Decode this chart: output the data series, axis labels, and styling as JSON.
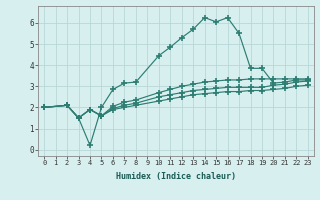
{
  "xlabel": "Humidex (Indice chaleur)",
  "xlim": [
    -0.5,
    23.5
  ],
  "ylim": [
    -0.3,
    6.8
  ],
  "xticks": [
    0,
    1,
    2,
    3,
    4,
    5,
    6,
    7,
    8,
    9,
    10,
    11,
    12,
    13,
    14,
    15,
    16,
    17,
    18,
    19,
    20,
    21,
    22,
    23
  ],
  "yticks": [
    0,
    1,
    2,
    3,
    4,
    5,
    6
  ],
  "background_color": "#d8efef",
  "grid_color": "#b8d8d8",
  "line_color": "#2d7d72",
  "lines": [
    {
      "x": [
        0,
        2,
        3,
        4,
        5,
        6,
        7,
        8,
        10,
        11,
        12,
        13,
        14,
        15,
        16,
        17,
        18,
        19,
        20,
        21,
        22,
        23
      ],
      "y": [
        2.0,
        2.1,
        1.5,
        0.2,
        2.0,
        2.85,
        3.15,
        3.2,
        4.45,
        4.85,
        5.3,
        5.7,
        6.25,
        6.05,
        6.25,
        5.5,
        3.85,
        3.85,
        3.15,
        3.2,
        3.3,
        3.3
      ]
    },
    {
      "x": [
        0,
        2,
        3,
        4,
        5,
        6,
        7,
        8,
        10,
        11,
        12,
        13,
        14,
        15,
        16,
        17,
        18,
        19,
        20,
        21,
        22,
        23
      ],
      "y": [
        2.0,
        2.1,
        1.5,
        1.9,
        1.6,
        2.05,
        2.25,
        2.35,
        2.7,
        2.85,
        3.0,
        3.1,
        3.2,
        3.25,
        3.3,
        3.3,
        3.35,
        3.35,
        3.35,
        3.35,
        3.35,
        3.35
      ]
    },
    {
      "x": [
        0,
        2,
        3,
        4,
        5,
        6,
        7,
        8,
        10,
        11,
        12,
        13,
        14,
        15,
        16,
        17,
        18,
        19,
        20,
        21,
        22,
        23
      ],
      "y": [
        2.0,
        2.1,
        1.5,
        1.9,
        1.6,
        1.95,
        2.1,
        2.2,
        2.5,
        2.6,
        2.7,
        2.8,
        2.85,
        2.9,
        2.95,
        2.95,
        2.95,
        2.95,
        3.05,
        3.1,
        3.2,
        3.25
      ]
    },
    {
      "x": [
        0,
        2,
        3,
        4,
        5,
        6,
        7,
        8,
        10,
        11,
        12,
        13,
        14,
        15,
        16,
        17,
        18,
        19,
        20,
        21,
        22,
        23
      ],
      "y": [
        2.0,
        2.1,
        1.5,
        1.9,
        1.6,
        1.9,
        2.0,
        2.1,
        2.3,
        2.4,
        2.5,
        2.6,
        2.65,
        2.7,
        2.75,
        2.75,
        2.8,
        2.8,
        2.85,
        2.9,
        3.0,
        3.05
      ]
    }
  ]
}
